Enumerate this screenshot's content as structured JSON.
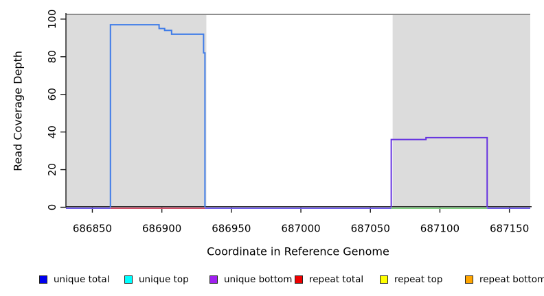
{
  "chart_data": {
    "type": "step-line",
    "title": "",
    "xlabel": "Coordinate in Reference Genome",
    "ylabel": "Read Coverage Depth",
    "xlim": [
      686831,
      687165
    ],
    "ylim": [
      0,
      102.5
    ],
    "x_ticks": [
      686850,
      686900,
      686950,
      687000,
      687050,
      687100,
      687150
    ],
    "y_ticks": [
      0,
      20,
      40,
      60,
      80,
      100
    ],
    "grid": false,
    "shaded_regions": [
      {
        "x1": 686831,
        "x2": 686932,
        "color": "#dcdcdc"
      },
      {
        "x1": 687066,
        "x2": 687165,
        "color": "#dcdcdc"
      }
    ],
    "top_rule": {
      "y": 102.5,
      "color": "#8f8f8f"
    },
    "series": [
      {
        "name": "unique total coverage block",
        "color": "#3f7ce8",
        "points": [
          [
            686863,
            0
          ],
          [
            686863,
            97
          ],
          [
            686898,
            97
          ],
          [
            686898,
            95
          ],
          [
            686902,
            95
          ],
          [
            686902,
            94
          ],
          [
            686907,
            94
          ],
          [
            686907,
            92
          ],
          [
            686930,
            92
          ],
          [
            686930,
            82
          ],
          [
            686931,
            82
          ],
          [
            686931,
            0
          ]
        ]
      },
      {
        "name": "unique bottom coverage block",
        "color": "#6633e0",
        "points": [
          [
            687065,
            0
          ],
          [
            687065,
            36
          ],
          [
            687090,
            36
          ],
          [
            687090,
            37
          ],
          [
            687134,
            37
          ],
          [
            687134,
            0
          ]
        ]
      }
    ],
    "baseline_segments": [
      {
        "x1": 686831,
        "x2": 686863,
        "color": "#6f5ce8"
      },
      {
        "x1": 686863,
        "x2": 686931,
        "color": "#d0506a"
      },
      {
        "x1": 686931,
        "x2": 687065,
        "color": "#6f5ce8"
      },
      {
        "x1": 687065,
        "x2": 687134,
        "color": "#7fce7f"
      },
      {
        "x1": 687134,
        "x2": 687165,
        "color": "#6f5ce8"
      }
    ]
  },
  "legend": {
    "items": [
      {
        "label": "unique total",
        "color": "#0000ee"
      },
      {
        "label": "unique top",
        "color": "#00ffff"
      },
      {
        "label": "unique bottom",
        "color": "#a020f0"
      },
      {
        "label": "repeat total",
        "color": "#ee0000"
      },
      {
        "label": "repeat top",
        "color": "#ffff00"
      },
      {
        "label": "repeat bottom",
        "color": "#ffa500"
      }
    ]
  }
}
